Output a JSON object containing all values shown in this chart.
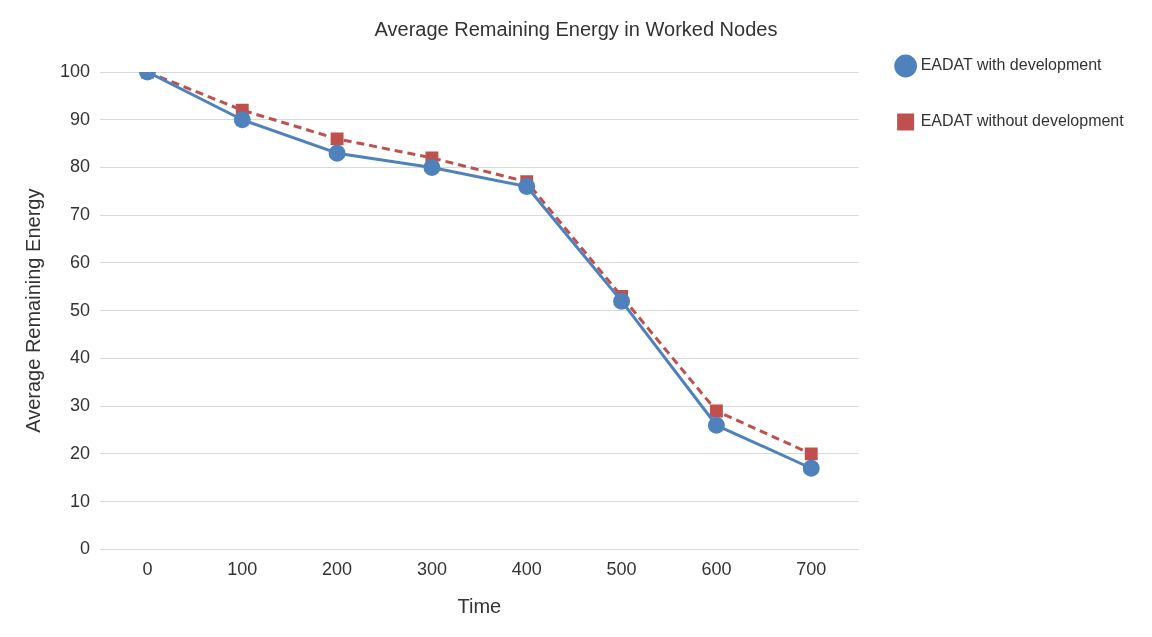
{
  "chart_data": {
    "type": "line",
    "title": "Average Remaining Energy in Worked Nodes",
    "xlabel": "Time",
    "ylabel": "Average Remaining Energy",
    "categories": [
      "0",
      "100",
      "200",
      "300",
      "400",
      "500",
      "600",
      "700"
    ],
    "series": [
      {
        "name": "EADAT without development",
        "color": "#c0504d",
        "values": [
          100,
          92,
          86,
          82,
          77,
          53,
          29,
          20
        ],
        "marker": "square",
        "line_style": "dashed"
      },
      {
        "name": "EADAT with development",
        "color": "#4f81bd",
        "values": [
          100,
          90,
          83,
          80,
          76,
          52,
          26,
          17
        ],
        "marker": "circle",
        "line_style": "solid"
      }
    ],
    "ylim": [
      0,
      100
    ],
    "yticks": [
      0,
      10,
      20,
      30,
      40,
      50,
      60,
      70,
      80,
      90,
      100
    ],
    "grid": "y",
    "legend": "right"
  }
}
